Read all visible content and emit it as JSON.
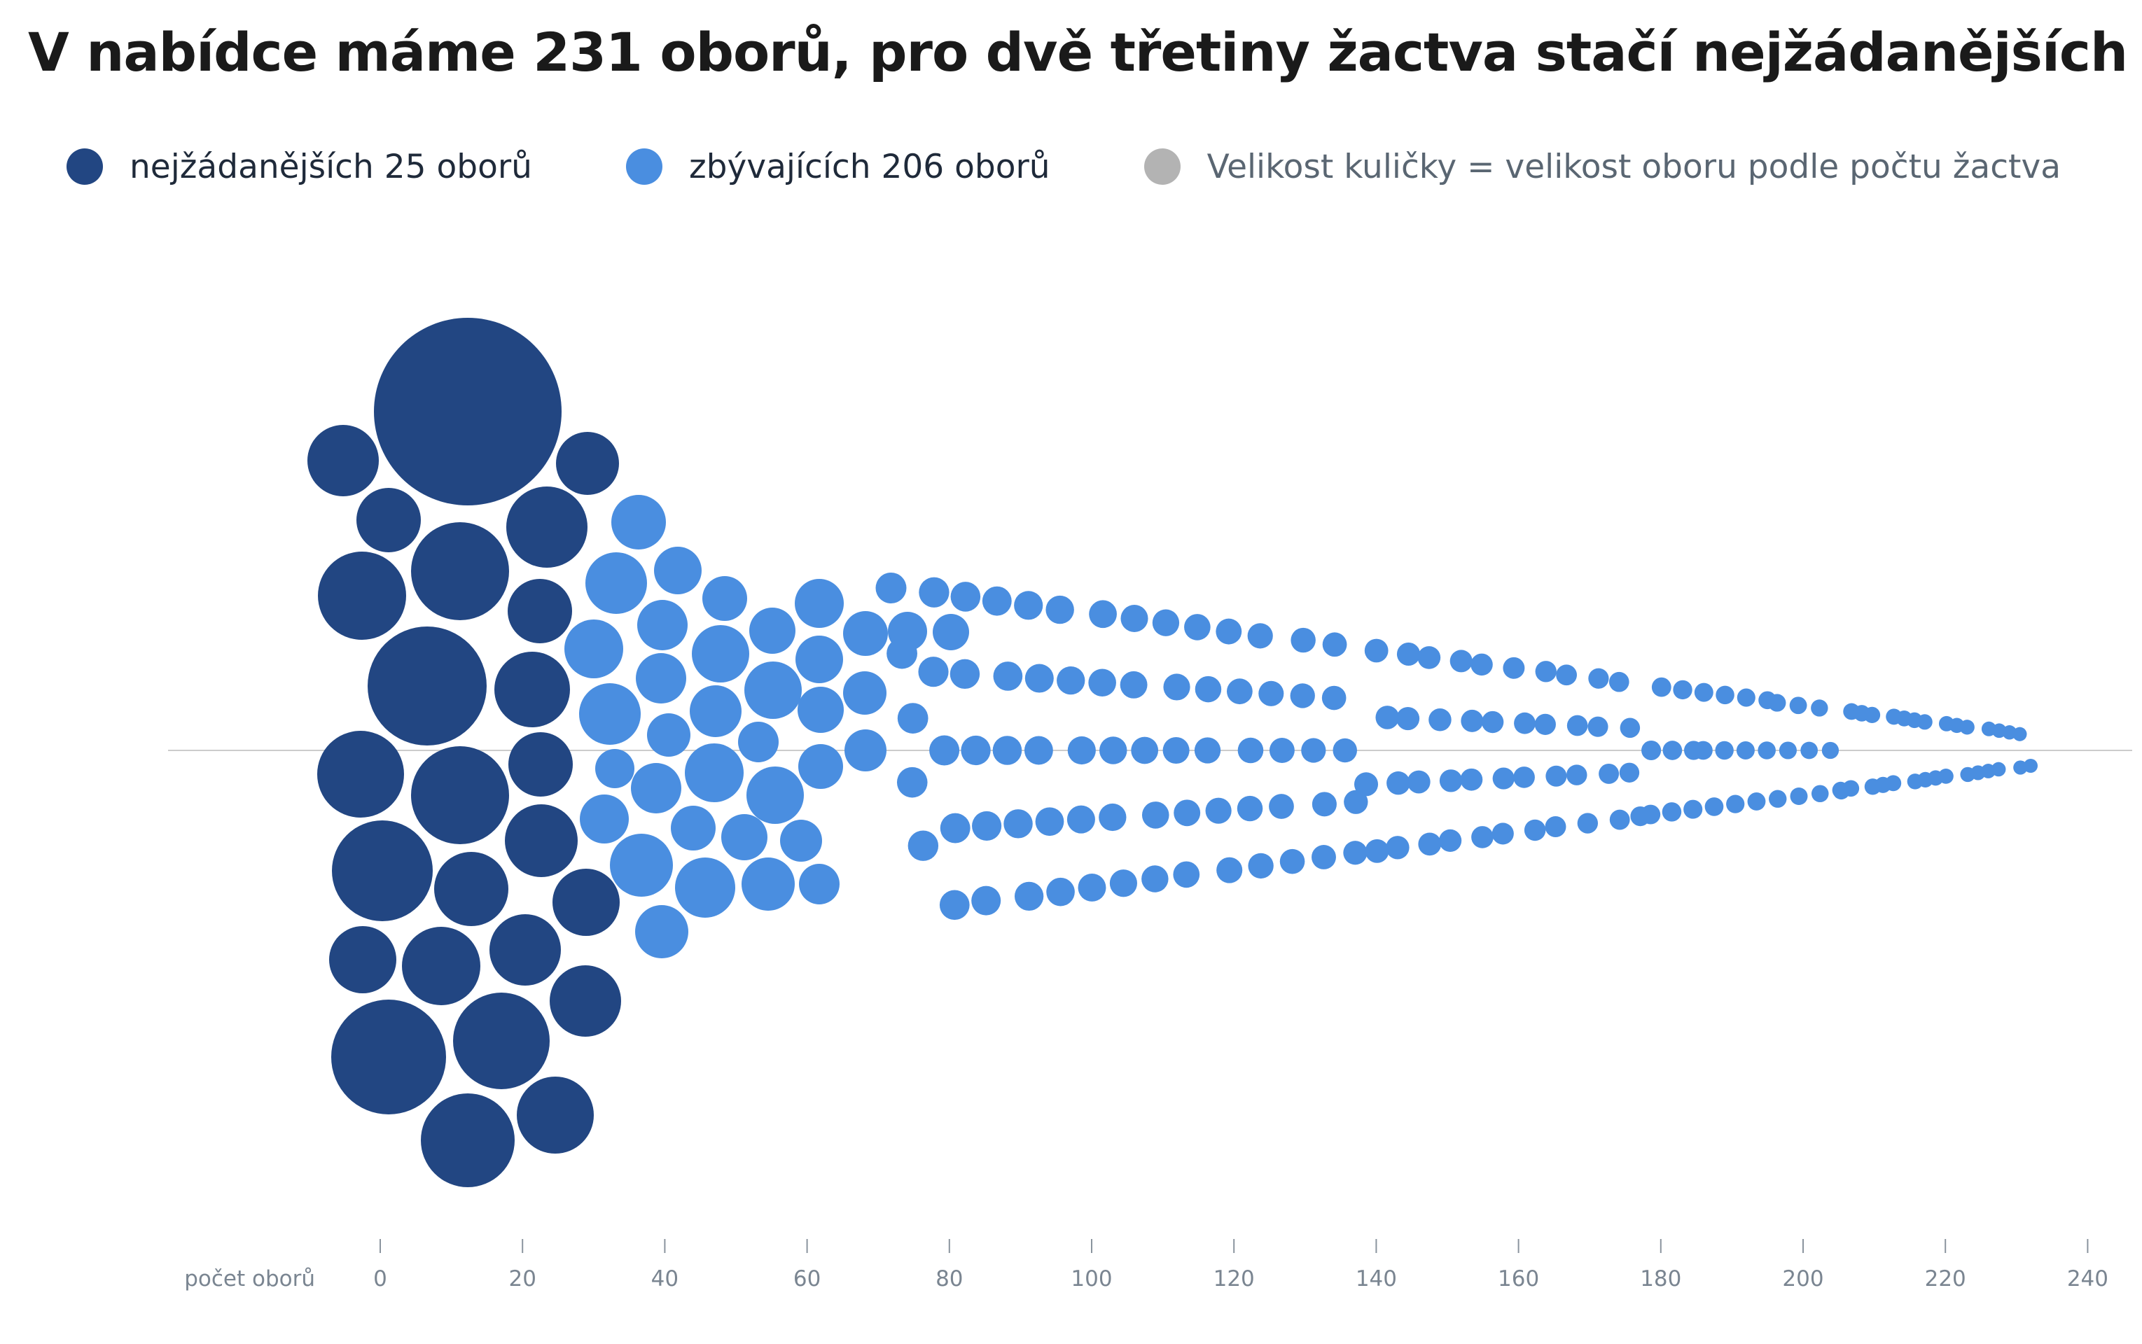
{
  "title": "V nabídce máme 231 oborů, pro dvě třetiny žactva stačí nejžádanějších 25",
  "legend": [
    {
      "label": "nejžádanějších 25 oborů",
      "color": "#224682"
    },
    {
      "label": "zbývajících 206 oborů",
      "color": "#4a8ee0"
    },
    {
      "label": "Velikost kuličky = velikost oboru podle počtu žactva",
      "color": "#b3b3b3"
    }
  ],
  "chart_data": {
    "type": "scatter",
    "title": "V nabídce máme 231 oborů, pro dvě třetiny žactva stačí nejžádanějších 25",
    "xlabel": "počet oborů",
    "xlim": [
      -30,
      245
    ],
    "xticks": [
      0,
      20,
      40,
      60,
      80,
      100,
      120,
      140,
      160,
      180,
      200,
      220,
      240
    ],
    "xtick_labels": [
      "0",
      "20",
      "40",
      "60",
      "80",
      "100",
      "120",
      "140",
      "160",
      "180",
      "200",
      "220",
      "240"
    ],
    "marker_size": "počet žactva",
    "series": [
      {
        "name": "nejžádanějších 25 oborů",
        "color": "#224682",
        "count": 25
      },
      {
        "name": "zbývajících 206 oborů",
        "color": "#4a8ee0",
        "count": 206
      }
    ]
  }
}
